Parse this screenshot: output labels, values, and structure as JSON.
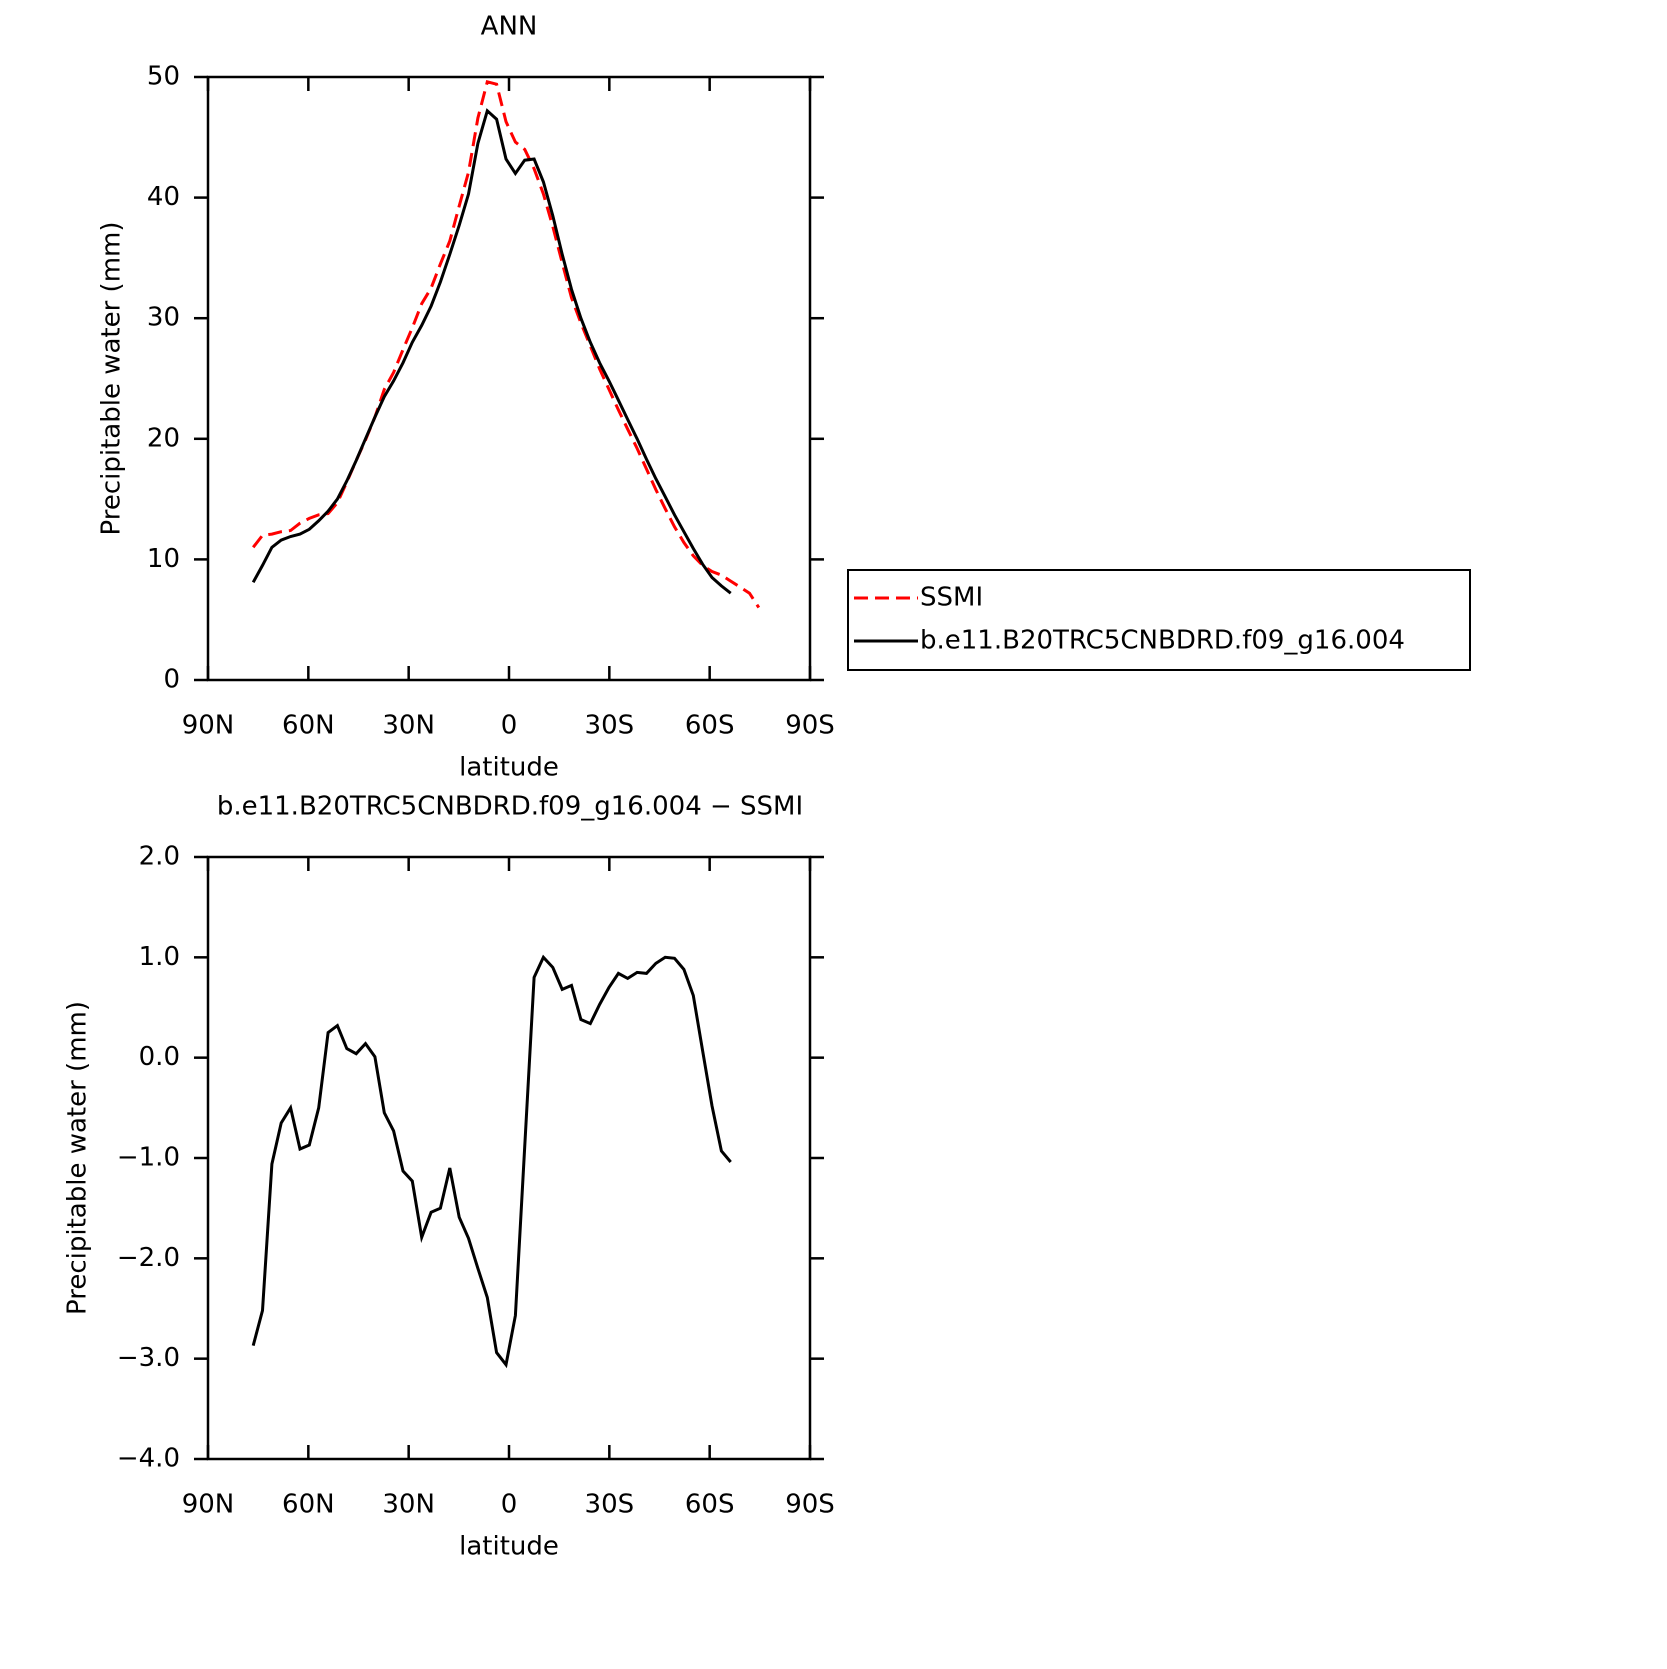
{
  "chart_data": [
    {
      "type": "line",
      "title": "ANN",
      "x_label": "latitude",
      "y_label": "Precipitable water (mm)",
      "xlim": [
        90,
        -90
      ],
      "ylim": [
        0,
        50
      ],
      "xticks": [
        {
          "value": 90,
          "label": "90N"
        },
        {
          "value": 60,
          "label": "60N"
        },
        {
          "value": 30,
          "label": "30N"
        },
        0,
        {
          "value": -30,
          "label": "30S"
        },
        {
          "value": -60,
          "label": "60S"
        },
        {
          "value": -90,
          "label": "90S"
        }
      ],
      "yticks": [
        0,
        10,
        20,
        30,
        40,
        50
      ],
      "legend": "outside-right",
      "x": [
        76.5,
        73.7,
        70.9,
        68.1,
        65.3,
        62.5,
        59.7,
        56.9,
        54.1,
        51.3,
        48.5,
        45.7,
        42.9,
        40.1,
        37.3,
        34.5,
        31.7,
        28.9,
        26.1,
        23.3,
        20.5,
        17.7,
        14.9,
        12.1,
        9.3,
        6.5,
        3.7,
        0.9,
        -1.9,
        -4.7,
        -7.5,
        -10.3,
        -13.1,
        -15.9,
        -18.7,
        -21.5,
        -24.3,
        -27.1,
        -29.9,
        -32.7,
        -35.5,
        -38.3,
        -41.1,
        -43.9,
        -46.7,
        -49.5,
        -52.3,
        -55.1,
        -57.9,
        -60.7,
        -63.5,
        -66.3,
        -69.1,
        -71.9,
        -74.7
      ],
      "series": [
        {
          "name": "SSMI",
          "color": "#ff0000",
          "linestyle": "dashed",
          "values": [
            11.0,
            12.0,
            12.1,
            12.3,
            12.4,
            13.0,
            13.4,
            13.7,
            13.8,
            14.7,
            16.4,
            18.2,
            19.9,
            21.8,
            24.1,
            25.5,
            27.4,
            29.2,
            31.2,
            32.5,
            34.5,
            36.4,
            39.3,
            42.1,
            46.6,
            49.6,
            49.4,
            46.3,
            44.6,
            44.0,
            42.4,
            40.3,
            37.6,
            34.6,
            31.7,
            29.6,
            27.7,
            25.8,
            24.1,
            22.4,
            20.8,
            19.2,
            17.5,
            15.8,
            14.2,
            12.7,
            11.4,
            10.3,
            9.5,
            9.0,
            8.7,
            8.2,
            7.7,
            7.2,
            6.0
          ]
        },
        {
          "name": "b.e11.B20TRC5CNBDRD.f09_g16.004",
          "color": "#000000",
          "linestyle": "solid",
          "values": [
            8.1,
            9.5,
            11.0,
            11.6,
            11.9,
            12.1,
            12.5,
            13.2,
            14.0,
            15.0,
            16.5,
            18.2,
            20.0,
            21.8,
            23.5,
            24.8,
            26.3,
            28.0,
            29.4,
            31.0,
            33.0,
            35.3,
            37.7,
            40.3,
            44.5,
            47.2,
            46.5,
            43.2,
            42.0,
            43.1,
            43.2,
            41.3,
            38.5,
            35.3,
            32.4,
            30.0,
            28.0,
            26.3,
            24.8,
            23.2,
            21.6,
            20.0,
            18.3,
            16.7,
            15.2,
            13.7,
            12.3,
            10.9,
            9.6,
            8.5,
            7.8,
            7.2,
            null,
            null,
            null
          ]
        }
      ]
    },
    {
      "type": "line",
      "title": "b.e11.B20TRC5CNBDRD.f09_g16.004 − SSMI",
      "x_label": "latitude",
      "y_label": "Precipitable water (mm)",
      "xlim": [
        90,
        -90
      ],
      "ylim": [
        -4,
        2
      ],
      "xticks": [
        {
          "value": 90,
          "label": "90N"
        },
        {
          "value": 60,
          "label": "60N"
        },
        {
          "value": 30,
          "label": "30N"
        },
        0,
        {
          "value": -30,
          "label": "30S"
        },
        {
          "value": -60,
          "label": "60S"
        },
        {
          "value": -90,
          "label": "90S"
        }
      ],
      "yticks": [
        {
          "value": -4,
          "label": "−4.0"
        },
        {
          "value": -3,
          "label": "−3.0"
        },
        {
          "value": -2,
          "label": "−2.0"
        },
        {
          "value": -1,
          "label": "−1.0"
        },
        {
          "value": 0,
          "label": "0.0"
        },
        {
          "value": 1,
          "label": "1.0"
        },
        {
          "value": 2,
          "label": "2.0"
        }
      ],
      "x": [
        76.5,
        73.7,
        70.9,
        68.1,
        65.3,
        62.5,
        59.7,
        56.9,
        54.1,
        51.3,
        48.5,
        45.7,
        42.9,
        40.1,
        37.3,
        34.5,
        31.7,
        28.9,
        26.1,
        23.3,
        20.5,
        17.7,
        14.9,
        12.1,
        9.3,
        6.5,
        3.7,
        0.9,
        -1.9,
        -4.7,
        -7.5,
        -10.3,
        -13.1,
        -15.9,
        -18.7,
        -21.5,
        -24.3,
        -27.1,
        -29.9,
        -32.7,
        -35.5,
        -38.3,
        -41.1,
        -43.9,
        -46.7,
        -49.5,
        -52.3,
        -55.1,
        -57.9,
        -60.7,
        -63.5,
        -66.3
      ],
      "series": [
        {
          "color": "#000000",
          "linestyle": "solid",
          "values": [
            -2.87,
            -2.52,
            -1.06,
            -0.65,
            -0.5,
            -0.91,
            -0.87,
            -0.5,
            0.25,
            0.32,
            0.09,
            0.04,
            0.14,
            0.01,
            -0.55,
            -0.73,
            -1.13,
            -1.23,
            -1.79,
            -1.54,
            -1.5,
            -1.1,
            -1.59,
            -1.8,
            -2.1,
            -2.39,
            -2.94,
            -3.06,
            -2.57,
            -0.89,
            0.8,
            1.0,
            0.9,
            0.68,
            0.72,
            0.38,
            0.34,
            0.53,
            0.7,
            0.84,
            0.79,
            0.85,
            0.84,
            0.94,
            1.0,
            0.99,
            0.88,
            0.62,
            0.07,
            -0.48,
            -0.93,
            -1.04
          ]
        }
      ]
    }
  ]
}
